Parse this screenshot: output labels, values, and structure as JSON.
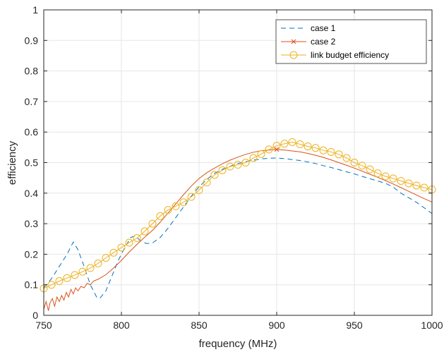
{
  "chart_data": {
    "type": "line",
    "xlabel": "frequency (MHz)",
    "ylabel": "efficiency",
    "xlim": [
      750,
      1000
    ],
    "ylim": [
      0,
      1
    ],
    "xticks": [
      "750",
      "800",
      "850",
      "900",
      "950",
      "1000"
    ],
    "yticks": [
      "0",
      "0.1",
      "0.2",
      "0.3",
      "0.4",
      "0.5",
      "0.6",
      "0.7",
      "0.8",
      "0.9",
      "1"
    ],
    "grid": true,
    "legend_position": "top-right",
    "series": [
      {
        "name": "case 1",
        "style": "dashed",
        "color": "#0072BD",
        "x": [
          750,
          755,
          760,
          765,
          769,
          772,
          776,
          780,
          784,
          786,
          790,
          794,
          798,
          802,
          806,
          809,
          812,
          816,
          820,
          825,
          830,
          835,
          840,
          845,
          850,
          855,
          860,
          865,
          870,
          875,
          880,
          885,
          890,
          895,
          900,
          905,
          910,
          915,
          920,
          925,
          930,
          935,
          940,
          945,
          950,
          955,
          960,
          965,
          970,
          975,
          980,
          985,
          990,
          995,
          1000
        ],
        "y": [
          0.09,
          0.12,
          0.16,
          0.2,
          0.24,
          0.215,
          0.16,
          0.1,
          0.06,
          0.055,
          0.08,
          0.13,
          0.18,
          0.22,
          0.255,
          0.26,
          0.245,
          0.235,
          0.237,
          0.255,
          0.285,
          0.32,
          0.355,
          0.39,
          0.42,
          0.445,
          0.465,
          0.478,
          0.488,
          0.497,
          0.503,
          0.508,
          0.512,
          0.514,
          0.515,
          0.513,
          0.51,
          0.507,
          0.502,
          0.497,
          0.49,
          0.484,
          0.477,
          0.47,
          0.463,
          0.455,
          0.447,
          0.44,
          0.432,
          0.42,
          0.4,
          0.385,
          0.37,
          0.352,
          0.333
        ]
      },
      {
        "name": "case 2",
        "style": "solid",
        "color": "#D95319",
        "x": [
          750,
          751.5,
          753,
          754,
          755.5,
          757,
          758.5,
          760,
          761.5,
          763,
          764.5,
          766,
          767.5,
          769,
          770.5,
          772,
          774,
          776,
          778,
          780,
          782,
          785,
          790,
          795,
          800,
          805,
          810,
          815,
          820,
          825,
          830,
          835,
          840,
          845,
          850,
          855,
          860,
          865,
          870,
          875,
          880,
          885,
          890,
          895,
          900,
          905,
          910,
          915,
          920,
          925,
          930,
          935,
          940,
          945,
          950,
          955,
          960,
          965,
          970,
          975,
          980,
          985,
          990,
          995,
          1000
        ],
        "y": [
          0.02,
          0.045,
          0.015,
          0.04,
          0.055,
          0.03,
          0.06,
          0.045,
          0.065,
          0.05,
          0.075,
          0.06,
          0.085,
          0.07,
          0.09,
          0.08,
          0.095,
          0.09,
          0.105,
          0.1,
          0.112,
          0.118,
          0.133,
          0.155,
          0.18,
          0.207,
          0.232,
          0.256,
          0.278,
          0.305,
          0.335,
          0.365,
          0.395,
          0.423,
          0.448,
          0.467,
          0.482,
          0.496,
          0.508,
          0.518,
          0.527,
          0.534,
          0.539,
          0.541,
          0.543,
          0.541,
          0.538,
          0.535,
          0.53,
          0.524,
          0.517,
          0.509,
          0.5,
          0.491,
          0.482,
          0.472,
          0.462,
          0.452,
          0.441,
          0.43,
          0.418,
          0.406,
          0.394,
          0.382,
          0.371
        ]
      },
      {
        "name": "link budget efficiency",
        "style": "solid-circle-markers",
        "color": "#EDB120",
        "x": [
          750,
          755,
          760,
          765,
          770,
          775,
          780,
          785,
          790,
          795,
          800,
          805,
          810,
          815,
          820,
          825,
          830,
          835,
          840,
          845,
          850,
          855,
          860,
          865,
          870,
          875,
          880,
          885,
          890,
          895,
          900,
          905,
          910,
          915,
          920,
          925,
          930,
          935,
          940,
          945,
          950,
          955,
          960,
          965,
          970,
          975,
          980,
          985,
          990,
          995,
          1000
        ],
        "y": [
          0.088,
          0.1,
          0.112,
          0.122,
          0.132,
          0.143,
          0.155,
          0.17,
          0.188,
          0.205,
          0.222,
          0.238,
          0.253,
          0.275,
          0.3,
          0.325,
          0.345,
          0.357,
          0.37,
          0.388,
          0.41,
          0.435,
          0.46,
          0.475,
          0.487,
          0.493,
          0.5,
          0.515,
          0.528,
          0.543,
          0.555,
          0.562,
          0.567,
          0.56,
          0.553,
          0.548,
          0.54,
          0.535,
          0.527,
          0.515,
          0.5,
          0.49,
          0.478,
          0.465,
          0.455,
          0.448,
          0.44,
          0.432,
          0.425,
          0.418,
          0.412
        ]
      }
    ]
  }
}
